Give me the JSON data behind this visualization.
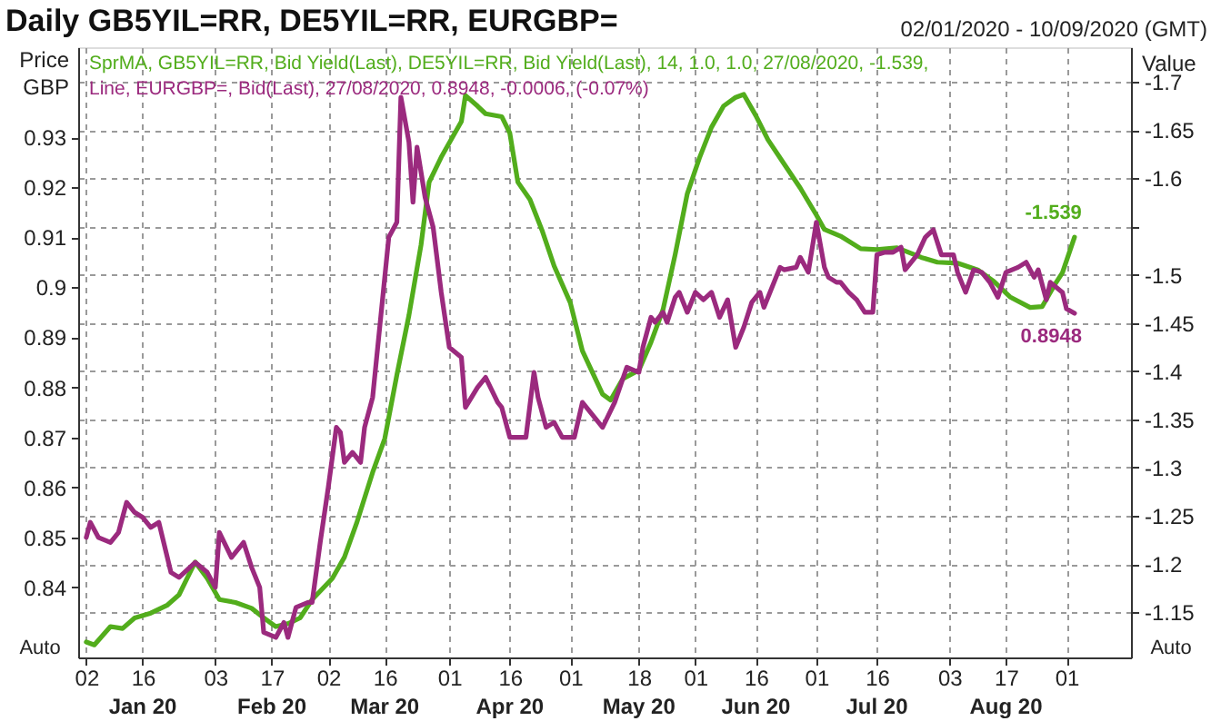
{
  "chart_data": {
    "type": "line",
    "title": "Daily GB5YIL=RR, DE5YIL=RR, EURGBP=",
    "subtitle": "02/01/2020 - 10/09/2020 (GMT)",
    "ylabel": "Price GBP",
    "y2label": "Value",
    "xlim": [
      "2019-12-31",
      "2020-09-17"
    ],
    "xticks": [
      {
        "value": "2020-01-02",
        "label": "02"
      },
      {
        "value": "2020-01-16",
        "label": "16"
      },
      {
        "value": "2020-02-03",
        "label": "03"
      },
      {
        "value": "2020-02-17",
        "label": "17"
      },
      {
        "value": "2020-03-02",
        "label": "02"
      },
      {
        "value": "2020-03-16",
        "label": "16"
      },
      {
        "value": "2020-04-01",
        "label": "01"
      },
      {
        "value": "2020-04-16",
        "label": "16"
      },
      {
        "value": "2020-05-01",
        "label": "01"
      },
      {
        "value": "2020-05-18",
        "label": "18"
      },
      {
        "value": "2020-06-01",
        "label": "01"
      },
      {
        "value": "2020-06-16",
        "label": "16"
      },
      {
        "value": "2020-07-01",
        "label": "01"
      },
      {
        "value": "2020-07-16",
        "label": "16"
      },
      {
        "value": "2020-08-03",
        "label": "03"
      },
      {
        "value": "2020-08-17",
        "label": "17"
      },
      {
        "value": "2020-09-01",
        "label": "01"
      }
    ],
    "ylim": [
      0.826,
      0.948
    ],
    "yticks": [
      0.84,
      0.85,
      0.86,
      0.87,
      0.88,
      0.89,
      0.9,
      0.91,
      0.92,
      0.93
    ],
    "y2lim": [
      -1.103,
      -1.736
    ],
    "y2ticks": [
      -1.15,
      -1.2,
      -1.25,
      -1.3,
      -1.35,
      -1.4,
      -1.45,
      -1.5,
      {
        "value": -1.55,
        "label": null
      },
      -1.6,
      -1.65,
      -1.7
    ],
    "grid": true,
    "legend": "top left",
    "annotations": [
      "Jan 20",
      "Feb 20",
      "Mar 20",
      "Apr 20",
      "May 20",
      "Jun 20",
      "Jul 20",
      "Aug 20",
      "Auto",
      "Auto"
    ],
    "series": [
      {
        "name": "SprMA, GB5YIL=RR, Bid Yield(Last), DE5YIL=RR, Bid Yield(Last),  14, 1.0, 1.0, 27/08/2020, -1.539,",
        "color": "#52ad1c",
        "axis": "y2",
        "x": [
          "2020-01-02",
          "2020-01-04",
          "2020-01-08",
          "2020-01-11",
          "2020-01-14",
          "2020-01-18",
          "2020-01-22",
          "2020-01-25",
          "2020-01-27",
          "2020-01-29",
          "2020-02-01",
          "2020-02-04",
          "2020-02-08",
          "2020-02-12",
          "2020-02-15",
          "2020-02-18",
          "2020-02-21",
          "2020-02-24",
          "2020-02-27",
          "2020-03-03",
          "2020-03-06",
          "2020-03-09",
          "2020-03-13",
          "2020-03-16",
          "2020-03-19",
          "2020-03-22",
          "2020-03-25",
          "2020-03-27",
          "2020-03-30",
          "2020-04-04",
          "2020-04-05",
          "2020-04-08",
          "2020-04-10",
          "2020-04-14",
          "2020-04-16",
          "2020-04-18",
          "2020-04-21",
          "2020-04-24",
          "2020-04-27",
          "2020-05-01",
          "2020-05-04",
          "2020-05-09",
          "2020-05-11",
          "2020-05-14",
          "2020-05-18",
          "2020-05-21",
          "2020-05-24",
          "2020-05-27",
          "2020-05-30",
          "2020-06-02",
          "2020-06-05",
          "2020-06-08",
          "2020-06-11",
          "2020-06-13",
          "2020-06-16",
          "2020-06-19",
          "2020-06-23",
          "2020-06-27",
          "2020-07-01",
          "2020-07-03",
          "2020-07-07",
          "2020-07-12",
          "2020-07-16",
          "2020-07-21",
          "2020-07-27",
          "2020-07-31",
          "2020-08-05",
          "2020-08-10",
          "2020-08-14",
          "2020-08-18",
          "2020-08-23",
          "2020-08-26",
          "2020-08-29",
          "2020-08-31",
          "2020-09-03"
        ],
        "values": [
          -1.119,
          -1.116,
          -1.135,
          -1.133,
          -1.144,
          -1.149,
          -1.157,
          -1.168,
          -1.185,
          -1.202,
          -1.185,
          -1.163,
          -1.16,
          -1.154,
          -1.144,
          -1.135,
          -1.138,
          -1.144,
          -1.163,
          -1.185,
          -1.207,
          -1.242,
          -1.295,
          -1.33,
          -1.396,
          -1.458,
          -1.531,
          -1.596,
          -1.622,
          -1.659,
          -1.686,
          -1.675,
          -1.667,
          -1.664,
          -1.647,
          -1.596,
          -1.578,
          -1.546,
          -1.509,
          -1.471,
          -1.421,
          -1.376,
          -1.37,
          -1.392,
          -1.401,
          -1.43,
          -1.464,
          -1.521,
          -1.584,
          -1.621,
          -1.653,
          -1.675,
          -1.684,
          -1.687,
          -1.665,
          -1.64,
          -1.615,
          -1.59,
          -1.562,
          -1.547,
          -1.54,
          -1.527,
          -1.526,
          -1.528,
          -1.518,
          -1.513,
          -1.512,
          -1.505,
          -1.493,
          -1.477,
          -1.466,
          -1.467,
          -1.489,
          -1.502,
          -1.539
        ],
        "value_labels": [
          null,
          null,
          null,
          null,
          null,
          null,
          null,
          null,
          null,
          null,
          null,
          null,
          null,
          null,
          null,
          null,
          null,
          null,
          null,
          null,
          null,
          null,
          null,
          null,
          null,
          null,
          null,
          null,
          null,
          null,
          null,
          null,
          null,
          null,
          null,
          null,
          null,
          null,
          null,
          null,
          null,
          null,
          null,
          null,
          null,
          null,
          null,
          null,
          null,
          null,
          null,
          null,
          null,
          null,
          null,
          null,
          null,
          null,
          null,
          null,
          null,
          null,
          null,
          null,
          null,
          null,
          null,
          null,
          null,
          null,
          null,
          null,
          null,
          null,
          "-1.539"
        ]
      },
      {
        "name": "Line, EURGBP=, Bid(Last), 27/08/2020, 0.8948, -0.0006, (-0.07%)",
        "color": "#9b2a7e",
        "axis": "y",
        "x": [
          "2020-01-02",
          "2020-01-03",
          "2020-01-05",
          "2020-01-08",
          "2020-01-10",
          "2020-01-12",
          "2020-01-14",
          "2020-01-16",
          "2020-01-18",
          "2020-01-20",
          "2020-01-23",
          "2020-01-25",
          "2020-01-29",
          "2020-02-01",
          "2020-02-03",
          "2020-02-04",
          "2020-02-07",
          "2020-02-10",
          "2020-02-12",
          "2020-02-14",
          "2020-02-15",
          "2020-02-18",
          "2020-02-20",
          "2020-02-21",
          "2020-02-23",
          "2020-02-26",
          "2020-02-27",
          "2020-02-29",
          "2020-03-02",
          "2020-03-04",
          "2020-03-05",
          "2020-03-06",
          "2020-03-08",
          "2020-03-10",
          "2020-03-11",
          "2020-03-13",
          "2020-03-15",
          "2020-03-17",
          "2020-03-19",
          "2020-03-20",
          "2020-03-22",
          "2020-03-23",
          "2020-03-24",
          "2020-03-26",
          "2020-03-28",
          "2020-03-30",
          "2020-04-01",
          "2020-04-04",
          "2020-04-05",
          "2020-04-08",
          "2020-04-10",
          "2020-04-13",
          "2020-04-14",
          "2020-04-16",
          "2020-04-18",
          "2020-04-20",
          "2020-04-22",
          "2020-04-23",
          "2020-04-25",
          "2020-04-27",
          "2020-04-29",
          "2020-05-02",
          "2020-05-04",
          "2020-05-09",
          "2020-05-12",
          "2020-05-15",
          "2020-05-18",
          "2020-05-19",
          "2020-05-21",
          "2020-05-22",
          "2020-05-24",
          "2020-05-25",
          "2020-05-27",
          "2020-05-28",
          "2020-05-30",
          "2020-06-01",
          "2020-06-03",
          "2020-06-05",
          "2020-06-07",
          "2020-06-09",
          "2020-06-11",
          "2020-06-13",
          "2020-06-15",
          "2020-06-17",
          "2020-06-18",
          "2020-06-19",
          "2020-06-22",
          "2020-06-23",
          "2020-06-26",
          "2020-06-27",
          "2020-06-29",
          "2020-07-01",
          "2020-07-03",
          "2020-07-04",
          "2020-07-06",
          "2020-07-07",
          "2020-07-09",
          "2020-07-11",
          "2020-07-13",
          "2020-07-15",
          "2020-07-16",
          "2020-07-18",
          "2020-07-20",
          "2020-07-22",
          "2020-07-23",
          "2020-07-26",
          "2020-07-28",
          "2020-07-30",
          "2020-08-01",
          "2020-08-04",
          "2020-08-05",
          "2020-08-07",
          "2020-08-09",
          "2020-08-11",
          "2020-08-13",
          "2020-08-15",
          "2020-08-17",
          "2020-08-20",
          "2020-08-22",
          "2020-08-24",
          "2020-08-25",
          "2020-08-27",
          "2020-08-28",
          "2020-08-31",
          "2020-09-01",
          "2020-09-03"
        ],
        "values": [
          0.85,
          0.853,
          0.85,
          0.849,
          0.851,
          0.857,
          0.855,
          0.854,
          0.852,
          0.853,
          0.843,
          0.842,
          0.845,
          0.843,
          0.84,
          0.851,
          0.846,
          0.849,
          0.844,
          0.84,
          0.831,
          0.83,
          0.833,
          0.83,
          0.836,
          0.837,
          0.837,
          0.849,
          0.86,
          0.872,
          0.871,
          0.865,
          0.867,
          0.865,
          0.872,
          0.878,
          0.894,
          0.91,
          0.913,
          0.938,
          0.929,
          0.917,
          0.928,
          0.918,
          0.912,
          0.899,
          0.888,
          0.886,
          0.876,
          0.88,
          0.882,
          0.877,
          0.876,
          0.87,
          0.87,
          0.87,
          0.883,
          0.878,
          0.872,
          0.873,
          0.87,
          0.87,
          0.877,
          0.872,
          0.877,
          0.884,
          0.883,
          0.888,
          0.894,
          0.893,
          0.895,
          0.893,
          0.898,
          0.899,
          0.895,
          0.899,
          0.8975,
          0.899,
          0.894,
          0.8975,
          0.888,
          0.892,
          0.897,
          0.899,
          0.896,
          0.898,
          0.904,
          0.9035,
          0.904,
          0.906,
          0.903,
          0.913,
          0.904,
          0.902,
          0.901,
          0.901,
          0.899,
          0.8975,
          0.895,
          0.895,
          0.9065,
          0.907,
          0.907,
          0.908,
          0.9035,
          0.9065,
          0.91,
          0.9115,
          0.9065,
          0.9065,
          0.903,
          0.899,
          0.9035,
          0.903,
          0.901,
          0.898,
          0.903,
          0.904,
          0.905,
          0.902,
          0.9035,
          0.8975,
          0.901,
          0.899,
          0.8957,
          0.8948
        ],
        "value_labels": [
          null,
          null,
          null,
          null,
          null,
          null,
          null,
          null,
          null,
          null,
          null,
          null,
          null,
          null,
          null,
          null,
          null,
          null,
          null,
          null,
          null,
          null,
          null,
          null,
          null,
          null,
          null,
          null,
          null,
          null,
          null,
          null,
          null,
          null,
          null,
          null,
          null,
          null,
          null,
          null,
          null,
          null,
          null,
          null,
          null,
          null,
          null,
          null,
          null,
          null,
          null,
          null,
          null,
          null,
          null,
          null,
          null,
          null,
          null,
          null,
          null,
          null,
          null,
          null,
          null,
          null,
          null,
          null,
          null,
          null,
          null,
          null,
          null,
          null,
          null,
          null,
          null,
          null,
          null,
          null,
          null,
          null,
          null,
          null,
          null,
          null,
          null,
          null,
          null,
          null,
          null,
          null,
          null,
          null,
          null,
          null,
          null,
          null,
          null,
          null,
          null,
          null,
          null,
          null,
          null,
          null,
          null,
          null,
          null,
          null,
          null,
          null,
          null,
          null,
          null,
          null,
          null,
          null,
          null,
          null,
          null,
          null,
          null,
          null,
          null,
          "0.8948"
        ]
      }
    ]
  }
}
